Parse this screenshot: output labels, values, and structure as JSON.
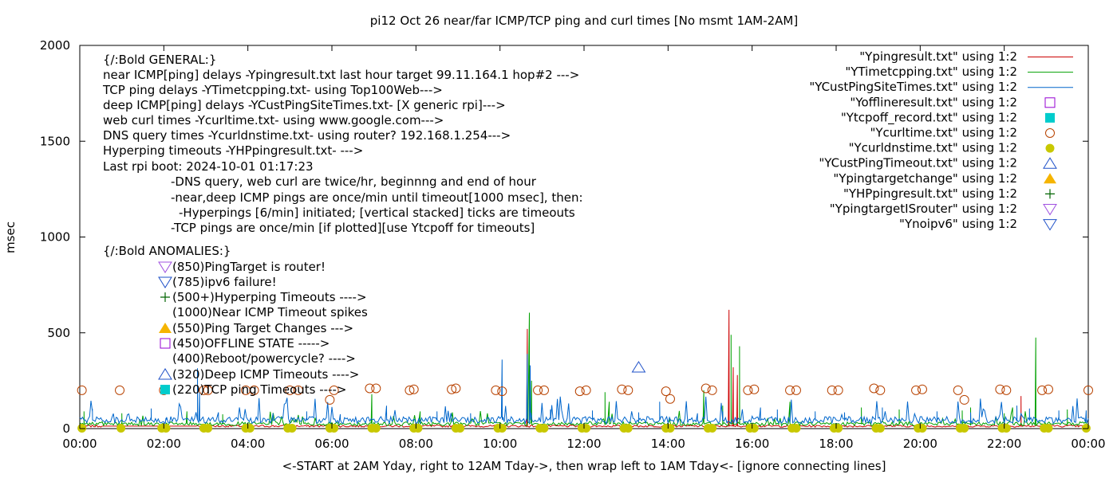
{
  "chart_data": {
    "type": "line",
    "title": "pi12 Oct 26  near/far ICMP/TCP ping and curl times [No msmt 1AM-2AM]",
    "xlabel": "<-START at 2AM Yday, right to 12AM Tday->, then wrap left to 1AM Tday<- [ignore connecting lines]",
    "ylabel": "msec",
    "xlim": [
      0,
      24
    ],
    "ylim": [
      0,
      2000
    ],
    "x_ticks": [
      {
        "v": 0,
        "label": "00:00"
      },
      {
        "v": 2,
        "label": "02:00"
      },
      {
        "v": 4,
        "label": "04:00"
      },
      {
        "v": 6,
        "label": "06:00"
      },
      {
        "v": 8,
        "label": "08:00"
      },
      {
        "v": 10,
        "label": "10:00"
      },
      {
        "v": 12,
        "label": "12:00"
      },
      {
        "v": 14,
        "label": "14:00"
      },
      {
        "v": 16,
        "label": "16:00"
      },
      {
        "v": 18,
        "label": "18:00"
      },
      {
        "v": 20,
        "label": "20:00"
      },
      {
        "v": 22,
        "label": "22:00"
      },
      {
        "v": 24,
        "label": "00:00"
      }
    ],
    "y_ticks": [
      {
        "v": 0,
        "label": "0"
      },
      {
        "v": 500,
        "label": "500"
      },
      {
        "v": 1000,
        "label": "1000"
      },
      {
        "v": 1500,
        "label": "1500"
      },
      {
        "v": 2000,
        "label": "2000"
      }
    ],
    "grid": false,
    "legend_position": "top-right",
    "annotations": [
      "{/:Bold GENERAL:}",
      "near ICMP[ping] delays -Ypingresult.txt last hour target 99.11.164.1 hop#2 --->",
      "TCP ping delays -YTimetcpping.txt- using Top100Web--->",
      "deep ICMP[ping] delays -YCustPingSiteTimes.txt- [X generic rpi]--->",
      "web curl times -Ycurltime.txt- using www.google.com--->",
      "DNS query times -Ycurldnstime.txt- using router? 192.168.1.254--->",
      "Hyperping timeouts -YHPpingresult.txt- --->",
      "Last rpi boot: 2024-10-01 01:17:23",
      "-DNS query, web curl are twice/hr, beginnng and end of hour",
      "-near,deep ICMP pings are once/min until timeout[1000 msec], then:",
      "-Hyperpings [6/min] initiated; [vertical stacked] ticks are timeouts",
      "-TCP pings are once/min [if plotted][use Ytcpoff for timeouts]",
      "{/:Bold ANOMALIES:}",
      "(850)PingTarget is router!",
      "(785)ipv6 failure!",
      "(500+)Hyperping Timeouts ---->",
      "(1000)Near ICMP Timeout spikes",
      "(550)Ping Target Changes --->",
      "(450)OFFLINE STATE ----->",
      "(400)Reboot/powercycle? ---->",
      "(320)Deep ICMP Timeouts ---->",
      "(220)TCP ping Timeouts ---->"
    ],
    "series": [
      {
        "name": "\"Ypingresult.txt\" using 1:2",
        "color": "#cc0000",
        "style": "line",
        "baseline": 13,
        "spikes": [
          [
            10.65,
            520
          ],
          [
            15.45,
            620
          ],
          [
            15.55,
            320
          ],
          [
            15.65,
            280
          ],
          [
            22.4,
            170
          ]
        ]
      },
      {
        "name": "\"YTimetcpping.txt\" using 1:2",
        "color": "#00a000",
        "style": "line",
        "baseline": 25,
        "spikes": [
          [
            0.1,
            90
          ],
          [
            1.0,
            80
          ],
          [
            2.55,
            90
          ],
          [
            3.4,
            75
          ],
          [
            6.95,
            180
          ],
          [
            8.1,
            90
          ],
          [
            10.7,
            605
          ],
          [
            10.75,
            250
          ],
          [
            12.5,
            190
          ],
          [
            12.6,
            140
          ],
          [
            14.85,
            200
          ],
          [
            15.3,
            120
          ],
          [
            15.5,
            490
          ],
          [
            15.7,
            430
          ],
          [
            16.9,
            140
          ],
          [
            18.6,
            110
          ],
          [
            19.5,
            100
          ],
          [
            21.0,
            95
          ],
          [
            21.2,
            110
          ],
          [
            22.0,
            80
          ],
          [
            22.2,
            110
          ],
          [
            22.75,
            475
          ],
          [
            23.5,
            100
          ]
        ]
      },
      {
        "name": "\"YCustPingSiteTimes.txt\" using 1:2",
        "color": "#0066cc",
        "style": "line",
        "baseline": 45,
        "spikes": [
          [
            0.3,
            90
          ],
          [
            1.7,
            105
          ],
          [
            2.05,
            55
          ],
          [
            2.8,
            315
          ],
          [
            2.85,
            190
          ],
          [
            3.3,
            85
          ],
          [
            4.6,
            80
          ],
          [
            5.4,
            90
          ],
          [
            6.2,
            75
          ],
          [
            7.3,
            95
          ],
          [
            8.5,
            90
          ],
          [
            9.3,
            80
          ],
          [
            10.05,
            360
          ],
          [
            10.65,
            390
          ],
          [
            10.72,
            330
          ],
          [
            11.2,
            100
          ],
          [
            12.2,
            95
          ],
          [
            13.3,
            85
          ],
          [
            13.8,
            140
          ],
          [
            14.7,
            80
          ],
          [
            15.3,
            90
          ],
          [
            16.2,
            110
          ],
          [
            16.6,
            100
          ],
          [
            17.5,
            90
          ],
          [
            18.2,
            85
          ],
          [
            19.1,
            110
          ],
          [
            20.4,
            90
          ],
          [
            21.2,
            85
          ],
          [
            22.3,
            120
          ],
          [
            22.6,
            105
          ],
          [
            23.3,
            95
          ],
          [
            23.95,
            95
          ]
        ]
      },
      {
        "name": "\"Yofflineresult.txt\" using 1:2",
        "color": "#9400d3",
        "style": "open-square",
        "points": []
      },
      {
        "name": "\"Ytcpoff_record.txt\" using 1:2",
        "color": "#00cccc",
        "style": "filled-square",
        "points": []
      },
      {
        "name": "\"Ycurltime.txt\" using 1:2",
        "color": "#b84200",
        "style": "open-circle",
        "points": [
          [
            0.05,
            200
          ],
          [
            0.95,
            200
          ],
          [
            2.0,
            200
          ],
          [
            2.95,
            200
          ],
          [
            3.05,
            200
          ],
          [
            3.95,
            200
          ],
          [
            4.15,
            200
          ],
          [
            5.0,
            200
          ],
          [
            5.2,
            200
          ],
          [
            5.95,
            150
          ],
          [
            6.05,
            200
          ],
          [
            6.9,
            210
          ],
          [
            7.05,
            210
          ],
          [
            7.85,
            200
          ],
          [
            7.95,
            205
          ],
          [
            8.85,
            205
          ],
          [
            8.95,
            210
          ],
          [
            9.9,
            200
          ],
          [
            10.05,
            195
          ],
          [
            10.9,
            200
          ],
          [
            11.05,
            200
          ],
          [
            11.9,
            195
          ],
          [
            12.05,
            200
          ],
          [
            12.9,
            205
          ],
          [
            13.05,
            200
          ],
          [
            13.95,
            195
          ],
          [
            14.05,
            155
          ],
          [
            14.9,
            210
          ],
          [
            15.05,
            200
          ],
          [
            15.9,
            200
          ],
          [
            16.05,
            205
          ],
          [
            16.9,
            200
          ],
          [
            17.05,
            200
          ],
          [
            17.9,
            200
          ],
          [
            18.05,
            200
          ],
          [
            18.9,
            210
          ],
          [
            19.05,
            200
          ],
          [
            19.9,
            200
          ],
          [
            20.05,
            205
          ],
          [
            20.9,
            200
          ],
          [
            21.05,
            150
          ],
          [
            21.9,
            205
          ],
          [
            22.05,
            200
          ],
          [
            22.9,
            200
          ],
          [
            23.05,
            205
          ],
          [
            24.0,
            200
          ]
        ]
      },
      {
        "name": "\"Ycurldnstime.txt\" using 1:2",
        "color": "#c8c800",
        "style": "filled-circle",
        "points": "every-half-hour-near-zero"
      },
      {
        "name": "\"YCustPingTimeout.txt\" using 1:2",
        "color": "#1e50c8",
        "style": "open-triangle-up",
        "points": [
          [
            13.3,
            320
          ]
        ]
      },
      {
        "name": "\"Ypingtargetchange\" using 1:2",
        "color": "#f5b400",
        "style": "filled-triangle-up",
        "points": []
      },
      {
        "name": "\"YHPpingresult.txt\" using 1:2",
        "color": "#006400",
        "style": "plus",
        "points": []
      },
      {
        "name": "\"YpingtargetISrouter\" using 1:2",
        "color": "#a050e0",
        "style": "open-triangle-down",
        "points": []
      },
      {
        "name": "\"Ynoipv6\" using 1:2",
        "color": "#1e50c8",
        "style": "open-triangle-down",
        "points": []
      }
    ]
  }
}
